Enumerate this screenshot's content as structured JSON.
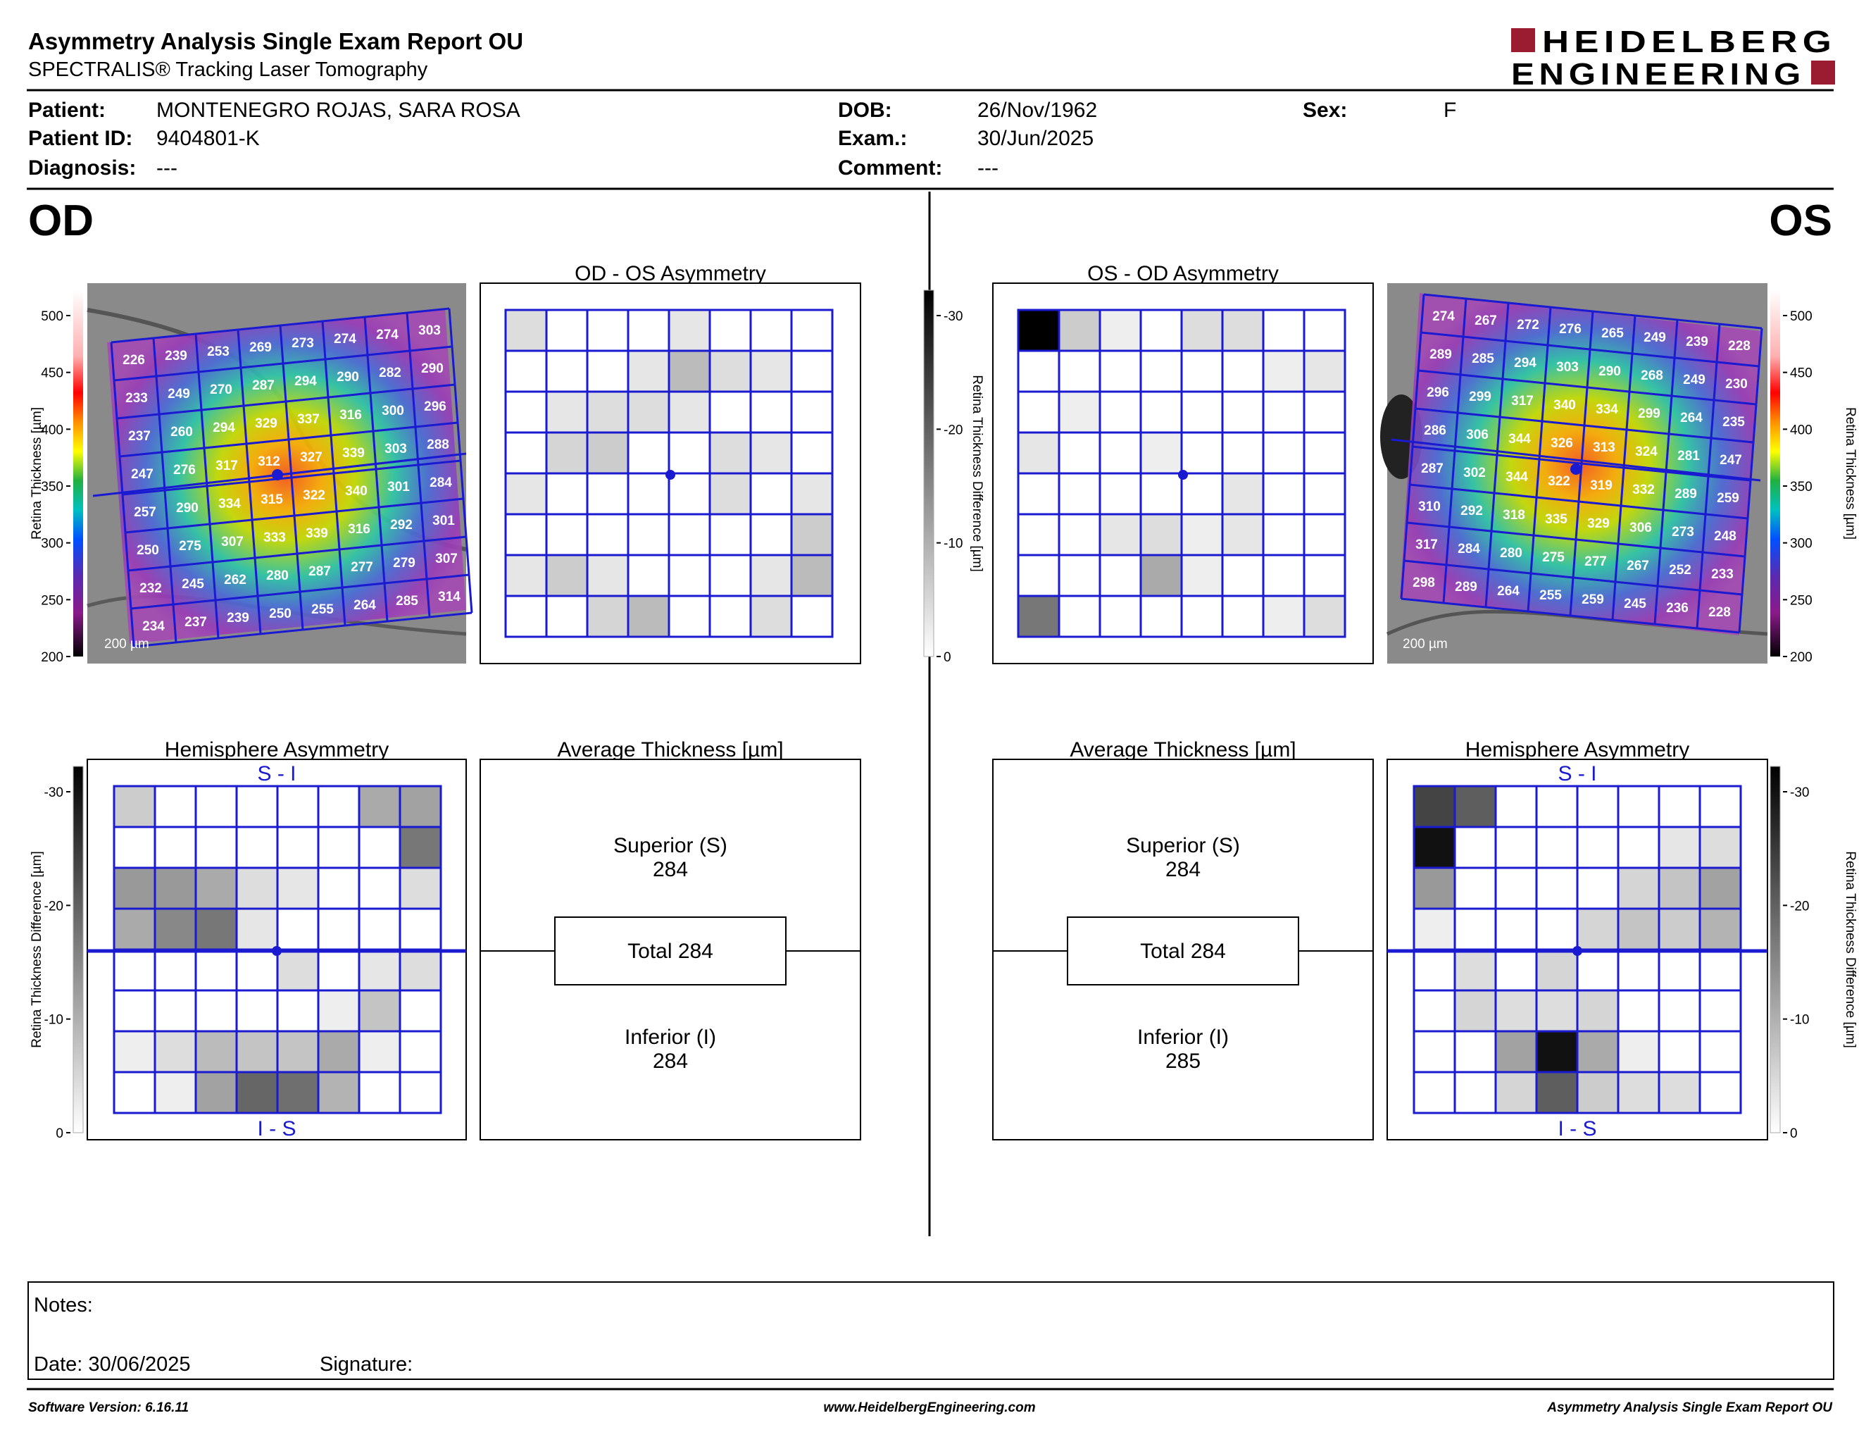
{
  "header": {
    "title": "Asymmetry Analysis Single Exam Report OU",
    "subtitle": "SPECTRALIS® Tracking Laser Tomography",
    "logo_line1": "HEIDELBERG",
    "logo_line2": "ENGINEERING"
  },
  "patient": {
    "patient_label": "Patient:",
    "patient_value": "MONTENEGRO ROJAS, SARA ROSA",
    "id_label": "Patient ID:",
    "id_value": "9404801-K",
    "diagnosis_label": "Diagnosis:",
    "diagnosis_value": "---",
    "dob_label": "DOB:",
    "dob_value": "26/Nov/1962",
    "exam_label": "Exam.:",
    "exam_value": "30/Jun/2025",
    "comment_label": "Comment:",
    "comment_value": "---",
    "sex_label": "Sex:",
    "sex_value": "F"
  },
  "colors": {
    "grid": "#1a1ad0",
    "text": "#000000",
    "logo_red": "#9b1b30"
  },
  "od": {
    "label": "OD",
    "scale_bar": "200 µm",
    "thickness_axis": {
      "label": "Retina  Thickness [µm]",
      "ticks": [
        "500",
        "450",
        "400",
        "350",
        "300",
        "250",
        "200"
      ]
    },
    "thickness_grid": [
      [
        "226",
        "239",
        "253",
        "269",
        "273",
        "274",
        "274",
        "303"
      ],
      [
        "233",
        "249",
        "270",
        "287",
        "294",
        "290",
        "282",
        "290"
      ],
      [
        "237",
        "260",
        "294",
        "329",
        "337",
        "316",
        "300",
        "296"
      ],
      [
        "247",
        "276",
        "317",
        "312",
        "327",
        "339",
        "303",
        "288"
      ],
      [
        "257",
        "290",
        "334",
        "315",
        "322",
        "340",
        "301",
        "284"
      ],
      [
        "250",
        "275",
        "307",
        "333",
        "339",
        "316",
        "292",
        "301"
      ],
      [
        "232",
        "245",
        "262",
        "280",
        "287",
        "277",
        "279",
        "307"
      ],
      [
        "234",
        "237",
        "239",
        "250",
        "255",
        "264",
        "285",
        "314"
      ]
    ],
    "asymmetry_title": "OD - OS Asymmetry",
    "asymmetry_grid": [
      [
        4,
        0,
        0,
        0,
        3,
        0,
        0,
        0
      ],
      [
        0,
        0,
        0,
        3,
        8,
        4,
        3,
        0
      ],
      [
        0,
        3,
        4,
        4,
        3,
        0,
        0,
        0
      ],
      [
        0,
        5,
        6,
        0,
        0,
        4,
        3,
        0
      ],
      [
        3,
        0,
        0,
        0,
        0,
        4,
        0,
        3
      ],
      [
        0,
        0,
        0,
        0,
        0,
        0,
        0,
        6
      ],
      [
        3,
        6,
        3,
        0,
        0,
        0,
        3,
        8
      ],
      [
        0,
        0,
        5,
        8,
        0,
        0,
        4,
        0
      ]
    ],
    "diff_axis": {
      "label": "Retina Thickness Difference [µm]",
      "ticks": [
        "-30",
        "-20",
        "-10",
        "0"
      ]
    },
    "hemisphere_title": "Hemisphere Asymmetry",
    "hemisphere_top": "S - I",
    "hemisphere_bottom": "I - S",
    "hemisphere_grid": [
      [
        6,
        0,
        0,
        0,
        0,
        0,
        10,
        11
      ],
      [
        0,
        0,
        0,
        0,
        0,
        0,
        0,
        16
      ],
      [
        12,
        12,
        10,
        4,
        3,
        0,
        0,
        4
      ],
      [
        10,
        14,
        16,
        3,
        0,
        0,
        0,
        0
      ],
      [
        0,
        0,
        0,
        0,
        4,
        0,
        3,
        4
      ],
      [
        0,
        0,
        0,
        0,
        0,
        2,
        7,
        0
      ],
      [
        2,
        4,
        8,
        7,
        7,
        10,
        2,
        0
      ],
      [
        0,
        2,
        11,
        18,
        17,
        9,
        0,
        0
      ]
    ],
    "average_title": "Average Thickness [µm]",
    "superior_label": "Superior (S)",
    "superior_value": "284",
    "total_label": "Total 284",
    "inferior_label": "Inferior (I)",
    "inferior_value": "284"
  },
  "os": {
    "label": "OS",
    "scale_bar": "200 µm",
    "thickness_axis": {
      "label": "Retina  Thickness [µm]",
      "ticks": [
        "500",
        "450",
        "400",
        "350",
        "300",
        "250",
        "200"
      ]
    },
    "thickness_grid": [
      [
        "274",
        "267",
        "272",
        "276",
        "265",
        "249",
        "239",
        "228"
      ],
      [
        "289",
        "285",
        "294",
        "303",
        "290",
        "268",
        "249",
        "230"
      ],
      [
        "296",
        "299",
        "317",
        "340",
        "334",
        "299",
        "264",
        "235"
      ],
      [
        "286",
        "306",
        "344",
        "326",
        "313",
        "324",
        "281",
        "247"
      ],
      [
        "287",
        "302",
        "344",
        "322",
        "319",
        "332",
        "289",
        "259"
      ],
      [
        "310",
        "292",
        "318",
        "335",
        "329",
        "306",
        "273",
        "248"
      ],
      [
        "317",
        "284",
        "280",
        "275",
        "277",
        "267",
        "252",
        "233"
      ],
      [
        "298",
        "289",
        "264",
        "255",
        "259",
        "245",
        "236",
        "228"
      ]
    ],
    "asymmetry_title": "OS - OD Asymmetry",
    "asymmetry_grid": [
      [
        30,
        6,
        2,
        0,
        4,
        4,
        0,
        0
      ],
      [
        0,
        0,
        0,
        0,
        0,
        0,
        2,
        3
      ],
      [
        0,
        2,
        0,
        0,
        0,
        0,
        0,
        0
      ],
      [
        3,
        0,
        0,
        2,
        0,
        0,
        0,
        0
      ],
      [
        0,
        0,
        0,
        0,
        0,
        3,
        0,
        0
      ],
      [
        0,
        0,
        3,
        4,
        2,
        3,
        0,
        0
      ],
      [
        0,
        0,
        0,
        10,
        2,
        0,
        0,
        0
      ],
      [
        16,
        0,
        0,
        0,
        0,
        0,
        2,
        4
      ]
    ],
    "diff_axis": {
      "label": "Retina Thickness Difference [µm]",
      "ticks": [
        "-30",
        "-20",
        "-10",
        "0"
      ]
    },
    "hemisphere_title": "Hemisphere Asymmetry",
    "hemisphere_top": "S - I",
    "hemisphere_bottom": "I - S",
    "hemisphere_grid": [
      [
        22,
        19,
        0,
        0,
        0,
        0,
        0,
        0
      ],
      [
        28,
        0,
        0,
        0,
        0,
        0,
        3,
        4
      ],
      [
        12,
        0,
        0,
        0,
        0,
        5,
        7,
        11
      ],
      [
        2,
        0,
        0,
        0,
        5,
        7,
        6,
        9
      ],
      [
        0,
        4,
        0,
        5,
        0,
        0,
        0,
        0
      ],
      [
        0,
        5,
        4,
        4,
        5,
        0,
        0,
        0
      ],
      [
        0,
        0,
        11,
        28,
        10,
        2,
        0,
        0
      ],
      [
        0,
        0,
        5,
        19,
        6,
        4,
        4,
        0
      ]
    ],
    "average_title": "Average Thickness [µm]",
    "superior_label": "Superior (S)",
    "superior_value": "284",
    "total_label": "Total 284",
    "inferior_label": "Inferior (I)",
    "inferior_value": "285"
  },
  "notes": {
    "notes_label": "Notes:",
    "date_label": "Date: 30/06/2025",
    "signature_label": "Signature:"
  },
  "footer": {
    "software": "Software Version: 6.16.11",
    "website": "www.HeidelbergEngineering.com",
    "report": "Asymmetry Analysis Single Exam Report OU"
  }
}
